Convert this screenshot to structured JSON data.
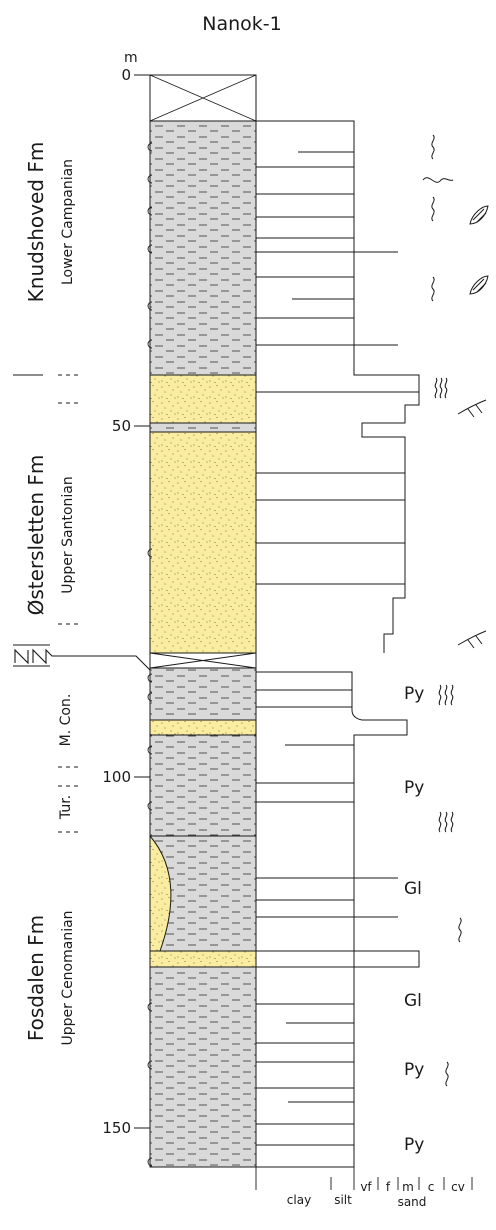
{
  "title": "Nanok-1",
  "depth_unit": "m",
  "depth_ticks": [
    {
      "depth": 0,
      "label": "0"
    },
    {
      "depth": 50,
      "label": "50"
    },
    {
      "depth": 100,
      "label": "100"
    },
    {
      "depth": 150,
      "label": "150"
    }
  ],
  "formations": [
    {
      "name": "Knudshoved Fm",
      "stage": "Lower Campanian"
    },
    {
      "name": "Østersletten Fm",
      "stage": "Upper Santonian"
    },
    {
      "name": "M. Con.",
      "stage": ""
    },
    {
      "name": "Tur.",
      "stage": ""
    },
    {
      "name": "Fosdalen Fm",
      "stage": "Upper Cenomanian"
    }
  ],
  "grain_size_scale": {
    "labels": [
      "clay",
      "silt",
      "vf",
      "f",
      "m",
      "c",
      "cv"
    ],
    "group_label": "sand"
  },
  "annotations": [
    {
      "text": "Py",
      "depth": 89
    },
    {
      "text": "Py",
      "depth": 102
    },
    {
      "text": "Gl",
      "depth": 116
    },
    {
      "text": "Gl",
      "depth": 132
    },
    {
      "text": "Py",
      "depth": 141
    },
    {
      "text": "Py",
      "depth": 154
    }
  ],
  "lithology_colors": {
    "mudstone": "#d9d9d9",
    "sandstone": "#fbeda0",
    "line": "#1a1a1a"
  }
}
